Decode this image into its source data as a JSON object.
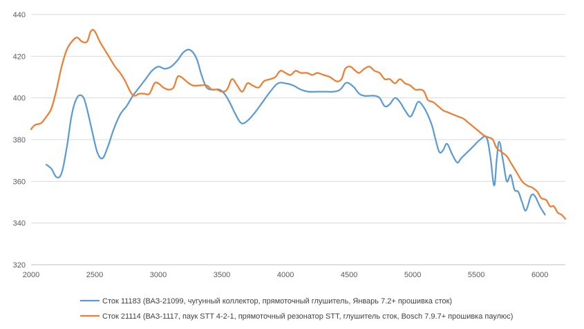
{
  "chart_data": {
    "type": "line",
    "title": "",
    "xlabel": "",
    "ylabel": "",
    "xlim": [
      2000,
      6200
    ],
    "ylim": [
      320,
      440
    ],
    "xticks": [
      2000,
      2500,
      3000,
      3500,
      4000,
      4500,
      5000,
      5500,
      6000
    ],
    "yticks": [
      320,
      340,
      360,
      380,
      400,
      420,
      440
    ],
    "grid": "horizontal",
    "legend_position": "bottom",
    "series": [
      {
        "name": "Сток 11183 (ВАЗ-21099, чугунный  коллектор, прямоточный глушитель, Январь 7.2+ прошивка сток)",
        "color": "#5B9BD5",
        "points": [
          [
            2120,
            368
          ],
          [
            2160,
            366
          ],
          [
            2200,
            362
          ],
          [
            2240,
            364
          ],
          [
            2280,
            376
          ],
          [
            2320,
            392
          ],
          [
            2360,
            400
          ],
          [
            2400,
            401
          ],
          [
            2430,
            397
          ],
          [
            2480,
            384
          ],
          [
            2520,
            374
          ],
          [
            2560,
            371
          ],
          [
            2600,
            376
          ],
          [
            2650,
            385
          ],
          [
            2700,
            392
          ],
          [
            2750,
            396
          ],
          [
            2800,
            401
          ],
          [
            2850,
            405
          ],
          [
            2900,
            409
          ],
          [
            2950,
            413
          ],
          [
            3000,
            415
          ],
          [
            3050,
            414
          ],
          [
            3100,
            415
          ],
          [
            3150,
            418
          ],
          [
            3200,
            422
          ],
          [
            3250,
            423
          ],
          [
            3300,
            419
          ],
          [
            3340,
            411
          ],
          [
            3380,
            405
          ],
          [
            3430,
            404
          ],
          [
            3480,
            404
          ],
          [
            3520,
            402
          ],
          [
            3560,
            398
          ],
          [
            3600,
            393
          ],
          [
            3650,
            388
          ],
          [
            3700,
            389
          ],
          [
            3760,
            393
          ],
          [
            3820,
            398
          ],
          [
            3880,
            403
          ],
          [
            3940,
            407
          ],
          [
            4000,
            407
          ],
          [
            4060,
            406
          ],
          [
            4120,
            404
          ],
          [
            4180,
            403
          ],
          [
            4250,
            403
          ],
          [
            4320,
            403
          ],
          [
            4380,
            403
          ],
          [
            4430,
            404
          ],
          [
            4470,
            407
          ],
          [
            4500,
            407
          ],
          [
            4540,
            405
          ],
          [
            4580,
            402
          ],
          [
            4620,
            401
          ],
          [
            4660,
            401
          ],
          [
            4700,
            401
          ],
          [
            4740,
            400
          ],
          [
            4780,
            396
          ],
          [
            4820,
            397
          ],
          [
            4860,
            400
          ],
          [
            4900,
            398
          ],
          [
            4940,
            394
          ],
          [
            4980,
            391
          ],
          [
            5010,
            394
          ],
          [
            5040,
            398
          ],
          [
            5070,
            397
          ],
          [
            5110,
            393
          ],
          [
            5150,
            387
          ],
          [
            5180,
            380
          ],
          [
            5210,
            374
          ],
          [
            5240,
            375
          ],
          [
            5270,
            378
          ],
          [
            5310,
            373
          ],
          [
            5350,
            369
          ],
          [
            5380,
            371
          ],
          [
            5430,
            374
          ],
          [
            5480,
            377
          ],
          [
            5530,
            380
          ],
          [
            5580,
            381
          ],
          [
            5610,
            372
          ],
          [
            5640,
            358
          ],
          [
            5660,
            370
          ],
          [
            5680,
            379
          ],
          [
            5710,
            370
          ],
          [
            5740,
            360
          ],
          [
            5770,
            363
          ],
          [
            5800,
            356
          ],
          [
            5830,
            355
          ],
          [
            5860,
            350
          ],
          [
            5890,
            346
          ],
          [
            5930,
            353
          ],
          [
            5960,
            353
          ],
          [
            6000,
            348
          ],
          [
            6040,
            344
          ]
        ]
      },
      {
        "name": "Сток 21114 (ВАЗ-1117, паук STT 4-2-1, прямоточный резонатор STT, глушитель сток, Bosch 7.9.7+ прошивка паулюс)",
        "color": "#ED7D31",
        "points": [
          [
            2000,
            385
          ],
          [
            2030,
            387
          ],
          [
            2080,
            388
          ],
          [
            2120,
            391
          ],
          [
            2160,
            395
          ],
          [
            2200,
            404
          ],
          [
            2240,
            415
          ],
          [
            2280,
            423
          ],
          [
            2320,
            427
          ],
          [
            2360,
            429
          ],
          [
            2400,
            427
          ],
          [
            2440,
            427
          ],
          [
            2470,
            432
          ],
          [
            2500,
            432
          ],
          [
            2540,
            427
          ],
          [
            2580,
            423
          ],
          [
            2620,
            419
          ],
          [
            2660,
            415
          ],
          [
            2700,
            412
          ],
          [
            2740,
            408
          ],
          [
            2780,
            403
          ],
          [
            2810,
            401
          ],
          [
            2850,
            402
          ],
          [
            2890,
            402
          ],
          [
            2930,
            402
          ],
          [
            2970,
            407
          ],
          [
            3000,
            407
          ],
          [
            3040,
            405
          ],
          [
            3080,
            404
          ],
          [
            3120,
            405
          ],
          [
            3150,
            410
          ],
          [
            3180,
            410
          ],
          [
            3220,
            408
          ],
          [
            3270,
            406
          ],
          [
            3320,
            406
          ],
          [
            3380,
            406
          ],
          [
            3420,
            404
          ],
          [
            3460,
            404
          ],
          [
            3500,
            403
          ],
          [
            3540,
            404
          ],
          [
            3580,
            409
          ],
          [
            3620,
            406
          ],
          [
            3660,
            403
          ],
          [
            3700,
            407
          ],
          [
            3740,
            406
          ],
          [
            3790,
            405
          ],
          [
            3830,
            408
          ],
          [
            3880,
            409
          ],
          [
            3920,
            410
          ],
          [
            3960,
            413
          ],
          [
            4000,
            412
          ],
          [
            4040,
            411
          ],
          [
            4080,
            413
          ],
          [
            4120,
            412
          ],
          [
            4170,
            412
          ],
          [
            4210,
            411
          ],
          [
            4250,
            412
          ],
          [
            4300,
            411
          ],
          [
            4350,
            410
          ],
          [
            4400,
            408
          ],
          [
            4440,
            409
          ],
          [
            4470,
            414
          ],
          [
            4510,
            415
          ],
          [
            4550,
            413
          ],
          [
            4580,
            412
          ],
          [
            4620,
            414
          ],
          [
            4660,
            415
          ],
          [
            4700,
            413
          ],
          [
            4740,
            412
          ],
          [
            4780,
            409
          ],
          [
            4820,
            409
          ],
          [
            4860,
            407
          ],
          [
            4900,
            409
          ],
          [
            4940,
            407
          ],
          [
            4980,
            406
          ],
          [
            5020,
            404
          ],
          [
            5060,
            404
          ],
          [
            5090,
            403
          ],
          [
            5120,
            399
          ],
          [
            5160,
            398
          ],
          [
            5200,
            396
          ],
          [
            5240,
            394
          ],
          [
            5280,
            393
          ],
          [
            5320,
            392
          ],
          [
            5360,
            391
          ],
          [
            5400,
            390
          ],
          [
            5440,
            388
          ],
          [
            5480,
            386
          ],
          [
            5520,
            384
          ],
          [
            5560,
            382
          ],
          [
            5600,
            381
          ],
          [
            5630,
            380
          ],
          [
            5660,
            376
          ],
          [
            5700,
            374
          ],
          [
            5740,
            372
          ],
          [
            5780,
            368
          ],
          [
            5820,
            364
          ],
          [
            5860,
            360
          ],
          [
            5900,
            358
          ],
          [
            5940,
            357
          ],
          [
            5980,
            355
          ],
          [
            6010,
            352
          ],
          [
            6050,
            351
          ],
          [
            6080,
            348
          ],
          [
            6110,
            348
          ],
          [
            6140,
            345
          ],
          [
            6170,
            344
          ],
          [
            6200,
            342
          ]
        ]
      }
    ]
  }
}
